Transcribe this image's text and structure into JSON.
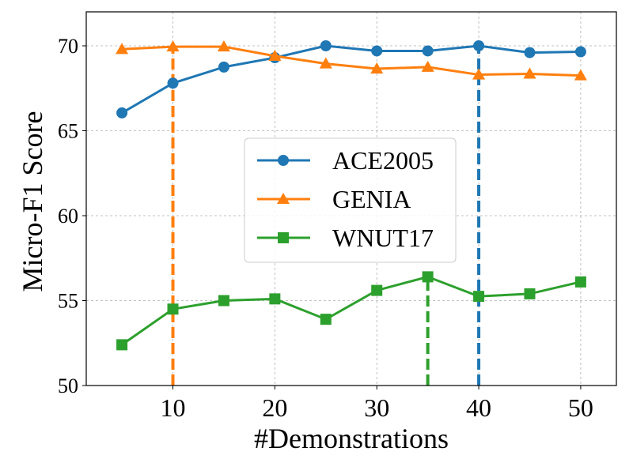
{
  "chart_data": {
    "type": "line",
    "title": "",
    "xlabel": "#Demonstrations",
    "ylabel": "Micro-F1 Score",
    "x": [
      5,
      10,
      15,
      20,
      25,
      30,
      35,
      40,
      45,
      50
    ],
    "xlim": [
      1.5,
      53.5
    ],
    "ylim": [
      50,
      72
    ],
    "xticks": [
      10,
      20,
      30,
      40,
      50
    ],
    "yticks": [
      50,
      55,
      60,
      65,
      70
    ],
    "grid": true,
    "legend_position": "center",
    "series": [
      {
        "name": "ACE2005",
        "color": "#1f77b4",
        "marker": "circle",
        "values": [
          66.05,
          67.8,
          68.75,
          69.3,
          70.0,
          69.7,
          69.7,
          70.0,
          69.6,
          69.65
        ],
        "best_x": 40
      },
      {
        "name": "GENIA",
        "color": "#ff7f0e",
        "marker": "triangle",
        "values": [
          69.8,
          69.95,
          69.95,
          69.4,
          68.95,
          68.65,
          68.75,
          68.3,
          68.35,
          68.25
        ],
        "best_x": 10
      },
      {
        "name": "WNUT17",
        "color": "#2ca02c",
        "marker": "square",
        "values": [
          52.4,
          54.5,
          55.0,
          55.1,
          53.9,
          55.6,
          56.4,
          55.25,
          55.4,
          56.1
        ],
        "best_x": 35
      }
    ]
  }
}
